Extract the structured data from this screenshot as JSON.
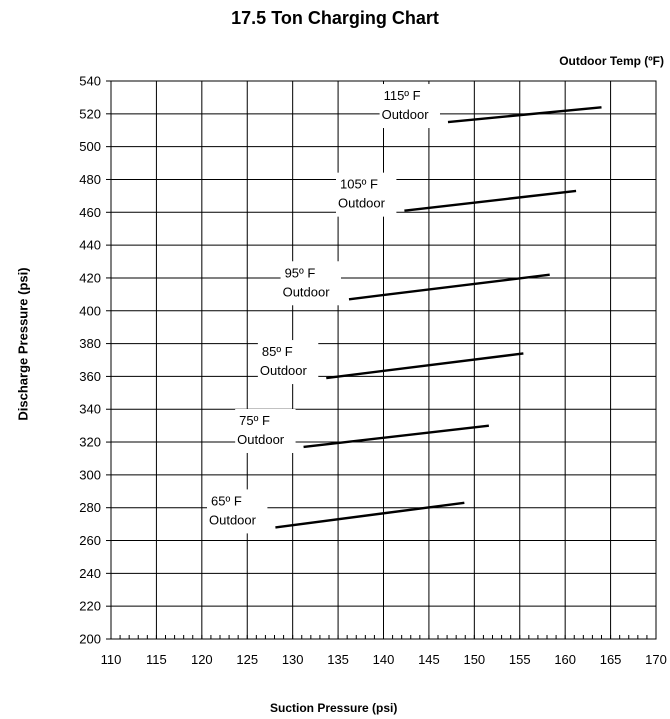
{
  "chart_data": {
    "type": "line",
    "title": "17.5 Ton Charging Chart",
    "xlabel": "Suction Pressure (psi)",
    "ylabel": "Discharge Pressure (psi)",
    "legend_title": "Outdoor Temp (ºF)",
    "xlim": [
      110,
      170
    ],
    "ylim": [
      200,
      540
    ],
    "xticks": [
      110,
      115,
      120,
      125,
      130,
      135,
      140,
      145,
      150,
      155,
      160,
      165,
      170
    ],
    "yticks": [
      200,
      220,
      240,
      260,
      280,
      300,
      320,
      340,
      360,
      380,
      400,
      420,
      440,
      460,
      480,
      500,
      520,
      540
    ],
    "grid": true,
    "series": [
      {
        "name": "65º F Outdoor",
        "temp": "65º F",
        "sub": "Outdoor",
        "x": [
          128.1,
          148.9
        ],
        "y": [
          268,
          283
        ]
      },
      {
        "name": "75º F Outdoor",
        "temp": "75º F",
        "sub": "Outdoor",
        "x": [
          131.2,
          151.6
        ],
        "y": [
          317,
          330
        ]
      },
      {
        "name": "85º F Outdoor",
        "temp": "85º F",
        "sub": "Outdoor",
        "x": [
          133.7,
          155.4
        ],
        "y": [
          359,
          374
        ]
      },
      {
        "name": "95º F Outdoor",
        "temp": "95º F",
        "sub": "Outdoor",
        "x": [
          136.2,
          158.3
        ],
        "y": [
          407,
          422
        ]
      },
      {
        "name": "105º F Outdoor",
        "temp": "105º F",
        "sub": "Outdoor",
        "x": [
          142.3,
          161.2
        ],
        "y": [
          461,
          473
        ]
      },
      {
        "name": "115º F Outdoor",
        "temp": "115º F",
        "sub": "Outdoor",
        "x": [
          147.1,
          164.0
        ],
        "y": [
          515,
          524
        ]
      }
    ]
  }
}
